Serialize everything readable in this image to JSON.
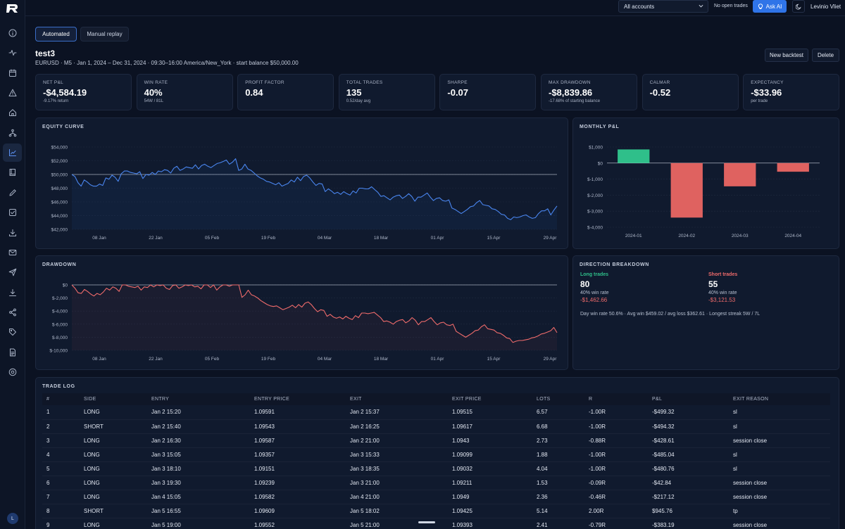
{
  "app": {
    "logo": "R logo"
  },
  "sidebar": {
    "items": [
      {
        "icon": "info-icon"
      },
      {
        "icon": "activity-icon"
      },
      {
        "icon": "calendar-icon"
      },
      {
        "icon": "alert-icon"
      },
      {
        "icon": "home-icon"
      },
      {
        "icon": "flow-icon"
      },
      {
        "icon": "chart-icon",
        "active": true
      },
      {
        "icon": "book-icon"
      },
      {
        "icon": "pen-icon"
      },
      {
        "icon": "checklist-icon"
      },
      {
        "icon": "download-icon"
      },
      {
        "icon": "mail-icon"
      },
      {
        "icon": "send-icon"
      },
      {
        "icon": "import-icon"
      },
      {
        "icon": "share-icon"
      },
      {
        "icon": "tag-icon"
      },
      {
        "icon": "document-icon"
      },
      {
        "icon": "target-icon"
      }
    ],
    "avatar_initial": "L"
  },
  "topbar": {
    "account_select": "All accounts",
    "open_trades": "No open trades",
    "ask_ai": "Ask AI",
    "user_name": "Levinio Vliet"
  },
  "tabs": [
    {
      "label": "Automated",
      "active": true
    },
    {
      "label": "Manual replay",
      "active": false
    }
  ],
  "backtest": {
    "title": "test3",
    "subtitle": "EURUSD · M5 · Jan 1, 2024 – Dec 31, 2024 · 09:30–16:00 America/New_York · start balance $50,000.00",
    "new_button": "New backtest",
    "delete_button": "Delete"
  },
  "stats": [
    {
      "label": "Net P&L",
      "value": "-$4,584.19",
      "sub": "-9.17% return"
    },
    {
      "label": "Win rate",
      "value": "40%",
      "sub": "54W / 81L"
    },
    {
      "label": "Profit factor",
      "value": "0.84",
      "sub": ""
    },
    {
      "label": "Total trades",
      "value": "135",
      "sub": "0.52/day avg"
    },
    {
      "label": "Sharpe",
      "value": "-0.07",
      "sub": ""
    },
    {
      "label": "Max drawdown",
      "value": "-$8,839.86",
      "sub": "-17.68% of starting balance"
    },
    {
      "label": "Calmar",
      "value": "-0.52",
      "sub": ""
    },
    {
      "label": "Expectancy",
      "value": "-$33.96",
      "sub": "per trade"
    }
  ],
  "panels": {
    "equity": "Equity curve",
    "monthly": "Monthly P&L",
    "drawdown": "Drawdown",
    "direction": "Direction breakdown",
    "trade_log": "Trade log"
  },
  "colors": {
    "accent": "#2f74e8",
    "equity_line": "#4a86f0",
    "drawdown_line": "#ef6b6b",
    "positive": "#2fbf8a",
    "negative": "#df6260"
  },
  "chart_data": [
    {
      "id": "equity",
      "type": "line",
      "x_ticks": [
        "08 Jan",
        "22 Jan",
        "05 Feb",
        "19 Feb",
        "04 Mar",
        "18 Mar",
        "01 Apr",
        "15 Apr",
        "29 Apr"
      ],
      "y_ticks": [
        "$54,000",
        "$52,000",
        "$50,000",
        "$48,000",
        "$46,000",
        "$44,000",
        "$42,000"
      ],
      "ylim": [
        42000,
        54000
      ],
      "baseline": 50000,
      "values": [
        50000,
        49700,
        48800,
        48300,
        49200,
        48900,
        48500,
        48300,
        48300,
        48600,
        48400,
        49500,
        49300,
        49900,
        49600,
        49000,
        50100,
        50500,
        50500,
        50300,
        50200,
        50100,
        50400,
        49400,
        50000,
        49900,
        50300,
        50000,
        50500,
        50400,
        50700,
        50600,
        50200,
        50900,
        51200,
        50600,
        50800,
        51100,
        51000,
        50900,
        51400,
        50800,
        51300,
        51500,
        51200,
        51000,
        51300,
        51600,
        51700,
        51900,
        52100,
        51500,
        51800,
        52300,
        50600,
        50800,
        51500,
        50800,
        50600,
        50200,
        49800,
        49500,
        49300,
        49000,
        48900,
        48700,
        48500,
        48800,
        48300,
        48500,
        48700,
        49200,
        48900,
        49600,
        49100,
        49700,
        49900,
        49500,
        48900,
        48400,
        48700,
        48600,
        47500,
        47900,
        47600,
        47200,
        47400,
        47100,
        47500,
        47200,
        47000,
        47600,
        47300,
        48000,
        48000,
        47900,
        47900,
        48200,
        47800,
        47400,
        46800,
        46900,
        46600,
        46300,
        46700,
        46900,
        47000,
        46500,
        46800,
        47200,
        46800,
        46100,
        46700,
        46700,
        47000,
        47300,
        46700,
        46200,
        46500,
        46600,
        46200,
        46100,
        46300,
        45100,
        44900,
        44600,
        44300,
        44600,
        44900,
        45300,
        45400,
        45900,
        46200,
        45600,
        45500,
        45400,
        45000,
        44900,
        44600,
        44200,
        44100,
        43600,
        43400,
        43800,
        43700,
        43800,
        44000,
        44100,
        43800,
        43600,
        43700,
        44300,
        44700,
        44700,
        45000,
        44100,
        44800,
        45400
      ]
    },
    {
      "id": "monthly",
      "type": "bar",
      "categories": [
        "2024-01",
        "2024-02",
        "2024-03",
        "2024-04"
      ],
      "values": [
        850,
        -3400,
        -1450,
        -540
      ],
      "y_ticks": [
        "$1,000",
        "$0",
        "$-1,000",
        "$-2,000",
        "$-3,000",
        "$-4,000"
      ],
      "ylim": [
        -4000,
        1000
      ]
    },
    {
      "id": "drawdown",
      "type": "line",
      "x_ticks": [
        "08 Jan",
        "22 Jan",
        "05 Feb",
        "19 Feb",
        "04 Mar",
        "18 Mar",
        "01 Apr",
        "15 Apr",
        "29 Apr"
      ],
      "y_ticks": [
        "$0",
        "$-2,000",
        "$-4,000",
        "$-6,000",
        "$-8,000",
        "$-10,000"
      ],
      "ylim": [
        -10000,
        0
      ],
      "values": [
        0,
        -500,
        -1200,
        -1300,
        -700,
        -1000,
        -1400,
        -1700,
        -1300,
        -1500,
        -1100,
        -500,
        -800,
        -300,
        -500,
        -1000,
        0,
        0,
        -200,
        -300,
        -400,
        -200,
        -800,
        -300,
        -400,
        0,
        -300,
        0,
        -100,
        0,
        -500,
        -700,
        -100,
        0,
        -500,
        -300,
        0,
        -100,
        0,
        -300,
        -200,
        -600,
        0,
        0,
        -400,
        0,
        -800,
        -300,
        0,
        0,
        -200,
        0,
        0,
        0,
        -1900,
        -1500,
        -800,
        -1500,
        -1700,
        -2000,
        -2400,
        -2700,
        -3000,
        -3200,
        -3300,
        -3200,
        -3500,
        -3800,
        -3600,
        -3400,
        -3100,
        -3500,
        -3000,
        -3400,
        -2800,
        -2600,
        -3000,
        -3600,
        -4100,
        -3800,
        -3900,
        -4800,
        -4500,
        -4900,
        -5100,
        -4900,
        -5200,
        -4800,
        -5100,
        -5300,
        -4700,
        -5000,
        -4300,
        -4300,
        -4400,
        -4300,
        -4200,
        -4600,
        -5000,
        -5600,
        -5500,
        -5700,
        -6000,
        -5600,
        -5400,
        -5300,
        -5800,
        -5500,
        -5000,
        -5400,
        -6100,
        -5600,
        -5600,
        -5300,
        -5000,
        -5600,
        -6100,
        -5800,
        -5700,
        -6100,
        -6200,
        -6000,
        -7100,
        -7400,
        -7700,
        -8000,
        -7700,
        -7400,
        -7000,
        -6900,
        -6400,
        -6100,
        -6700,
        -6800,
        -6900,
        -7300,
        -7400,
        -7700,
        -8100,
        -8200,
        -8800,
        -8600,
        -8500,
        -8500,
        -8400,
        -8300,
        -8100,
        -8000,
        -7800,
        -7500,
        -7400,
        -7200,
        -7000,
        -6500,
        -7300
      ]
    }
  ],
  "direction": {
    "long": {
      "label": "Long trades",
      "count": "80",
      "win_rate": "40% win rate",
      "pnl": "-$1,462.66"
    },
    "short": {
      "label": "Short trades",
      "count": "55",
      "win_rate": "40% win rate",
      "pnl": "-$3,121.53"
    },
    "footer": "Day win rate 50.6% · Avg win $459.02 / avg loss $362.61 · Longest streak 5W / 7L"
  },
  "trade_log": {
    "columns": [
      "#",
      "Side",
      "Entry",
      "Entry price",
      "Exit",
      "Exit price",
      "Lots",
      "R",
      "P&L",
      "Exit reason"
    ],
    "rows": [
      [
        "1",
        "LONG",
        "Jan 2 15:20",
        "1.09591",
        "Jan 2 15:37",
        "1.09515",
        "6.57",
        "-1.00R",
        "-$499.32",
        "sl"
      ],
      [
        "2",
        "SHORT",
        "Jan 2 15:40",
        "1.09543",
        "Jan 2 16:25",
        "1.09617",
        "6.68",
        "-1.00R",
        "-$494.32",
        "sl"
      ],
      [
        "3",
        "LONG",
        "Jan 2 16:30",
        "1.09587",
        "Jan 2 21:00",
        "1.0943",
        "2.73",
        "-0.88R",
        "-$428.61",
        "session close"
      ],
      [
        "4",
        "LONG",
        "Jan 3 15:05",
        "1.09357",
        "Jan 3 15:33",
        "1.09099",
        "1.88",
        "-1.00R",
        "-$485.04",
        "sl"
      ],
      [
        "5",
        "LONG",
        "Jan 3 18:10",
        "1.09151",
        "Jan 3 18:35",
        "1.09032",
        "4.04",
        "-1.00R",
        "-$480.76",
        "sl"
      ],
      [
        "6",
        "LONG",
        "Jan 3 19:30",
        "1.09239",
        "Jan 3 21:00",
        "1.09211",
        "1.53",
        "-0.09R",
        "-$42.84",
        "session close"
      ],
      [
        "7",
        "LONG",
        "Jan 4 15:05",
        "1.09582",
        "Jan 4 21:00",
        "1.0949",
        "2.36",
        "-0.46R",
        "-$217.12",
        "session close"
      ],
      [
        "8",
        "SHORT",
        "Jan 5 16:55",
        "1.09609",
        "Jan 5 18:02",
        "1.09425",
        "5.14",
        "2.00R",
        "$945.76",
        "tp"
      ],
      [
        "9",
        "LONG",
        "Jan 5 19:00",
        "1.09552",
        "Jan 5 21:00",
        "1.09393",
        "2.41",
        "-0.79R",
        "-$383.19",
        "session close"
      ]
    ]
  }
}
